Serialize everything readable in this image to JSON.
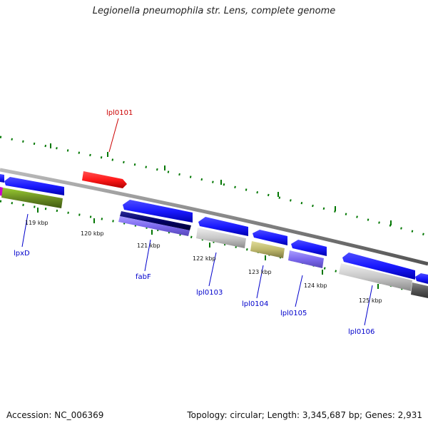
{
  "title": "Legionella pneumophila str. Lens, complete genome",
  "footer": {
    "accession": "Accession: NC_006369",
    "topology": "Topology: circular; Length: 3,345,687 bp; Genes: 2,931"
  },
  "ticks": [
    {
      "label": "119 kbp"
    },
    {
      "label": "120 kbp"
    },
    {
      "label": "121 kbp"
    },
    {
      "label": "122 kbp"
    },
    {
      "label": "123 kbp"
    },
    {
      "label": "124 kbp"
    },
    {
      "label": "125 kbp"
    }
  ],
  "genes": [
    {
      "name": "lpl0101",
      "color": "#cc0000"
    },
    {
      "name": "lpxD",
      "color": "#0000cc"
    },
    {
      "name": "fabF",
      "color": "#0000cc"
    },
    {
      "name": "lpl0103",
      "color": "#0000cc"
    },
    {
      "name": "lpl0104",
      "color": "#0000cc"
    },
    {
      "name": "lpl0105",
      "color": "#0000cc"
    },
    {
      "name": "lpl0106",
      "color": "#0000cc"
    }
  ],
  "colors": {
    "cds_blue": "#1a1aff",
    "cds_red": "#ff1a1a",
    "cog_green": "#6b8e23",
    "cog_navy": "#000066",
    "cog_purple": "#7b68ee",
    "cog_grey": "#c0c0c0",
    "cog_khaki": "#bdb76b",
    "cog_dark": "#555555",
    "backbone": "#888888",
    "tick_green": "#007700"
  }
}
